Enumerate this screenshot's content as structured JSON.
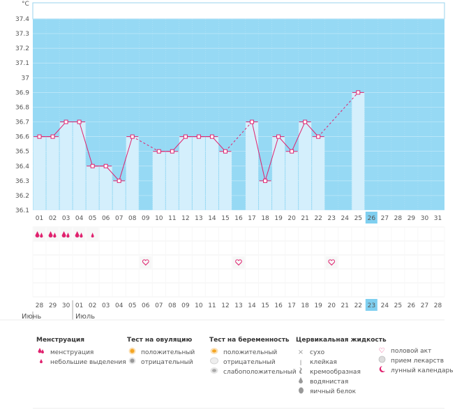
{
  "unit_label": "°C",
  "colors": {
    "plot_bg": "#96d9f4",
    "bar_fill": "#d4effc",
    "line": "#e0216e",
    "current_day": "#7fcff0",
    "weekend_red": "#cc1f5f"
  },
  "chart_data": {
    "type": "line",
    "title": "",
    "xlabel": "",
    "ylabel": "°C",
    "ylim": [
      36.1,
      37.4
    ],
    "y_ticks": [
      "36.1",
      "36.2",
      "36.3",
      "36.4",
      "36.5",
      "36.6",
      "36.7",
      "36.8",
      "36.9",
      "37",
      "37.1",
      "37.2",
      "37.3",
      "37.4"
    ],
    "cycle_days": [
      "01",
      "02",
      "03",
      "04",
      "05",
      "06",
      "07",
      "08",
      "09",
      "10",
      "11",
      "12",
      "13",
      "14",
      "15",
      "16",
      "17",
      "18",
      "19",
      "20",
      "21",
      "22",
      "23",
      "24",
      "25",
      "26",
      "27",
      "28",
      "29",
      "30",
      "31"
    ],
    "temperatures": [
      36.6,
      36.6,
      36.7,
      36.7,
      36.4,
      36.4,
      36.3,
      36.6,
      null,
      36.5,
      36.5,
      36.6,
      36.6,
      36.6,
      36.5,
      null,
      36.7,
      36.3,
      36.6,
      36.5,
      36.7,
      36.6,
      null,
      null,
      36.9,
      null,
      null,
      null,
      null,
      null,
      null
    ],
    "current_cycle_day": "26",
    "grid": true
  },
  "events": {
    "menstruation": [
      "01",
      "02",
      "03",
      "04"
    ],
    "light_spotting": [
      "05"
    ],
    "intercourse": [
      "09",
      "16",
      "23"
    ]
  },
  "calendar": {
    "dates": [
      "28",
      "29",
      "30",
      "01",
      "02",
      "03",
      "04",
      "05",
      "06",
      "07",
      "08",
      "09",
      "10",
      "11",
      "12",
      "13",
      "14",
      "15",
      "16",
      "17",
      "18",
      "19",
      "20",
      "21",
      "22",
      "23",
      "24",
      "25",
      "26",
      "27",
      "28"
    ],
    "weekend_indices": [
      2,
      8,
      9,
      15,
      16,
      22,
      23,
      29,
      30
    ],
    "current_index": 25,
    "month1": "Июнь",
    "month2": "Июль"
  },
  "legend": {
    "menstruation": {
      "title": "Менструация",
      "items": [
        {
          "icon": "menstruation-icon",
          "label": "менструация"
        },
        {
          "icon": "spotting-icon",
          "label": "небольшие выделения"
        }
      ]
    },
    "ovulation_test": {
      "title": "Тест на овуляцию",
      "items": [
        {
          "icon": "positive-ovulation-icon",
          "label": "положительный"
        },
        {
          "icon": "negative-ovulation-icon",
          "label": "отрицательный"
        }
      ]
    },
    "pregnancy_test": {
      "title": "Тест на беременность",
      "items": [
        {
          "icon": "positive-pregnancy-icon",
          "label": "положительный"
        },
        {
          "icon": "negative-pregnancy-icon",
          "label": "отрицательный"
        },
        {
          "icon": "weak-positive-pregnancy-icon",
          "label": "слабоположительный"
        }
      ]
    },
    "cervical_fluid": {
      "title": "Цервикальная жидкость",
      "items": [
        {
          "icon": "dry-icon",
          "label": "сухо"
        },
        {
          "icon": "sticky-icon",
          "label": "клейкая"
        },
        {
          "icon": "creamy-icon",
          "label": "кремообразная"
        },
        {
          "icon": "watery-icon",
          "label": "водянистая"
        },
        {
          "icon": "egg-white-icon",
          "label": "яичный белок"
        }
      ]
    },
    "other": {
      "items": [
        {
          "icon": "heart-icon",
          "label": "половой акт"
        },
        {
          "icon": "pill-icon",
          "label": "прием лекарств"
        },
        {
          "icon": "moon-icon",
          "label": "лунный календарь"
        }
      ]
    }
  }
}
